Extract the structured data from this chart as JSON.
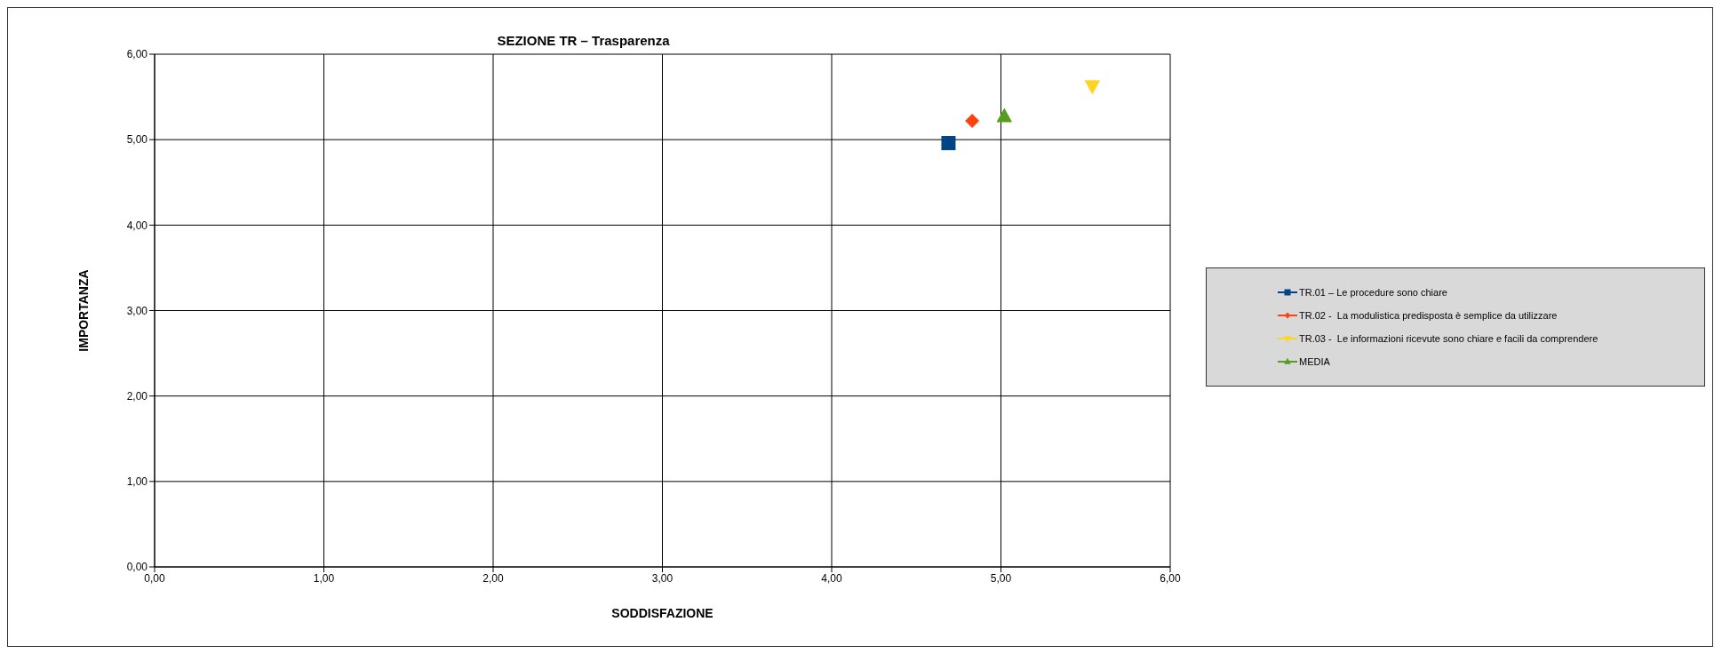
{
  "chart_data": {
    "type": "scatter",
    "title": "SEZIONE TR – Trasparenza",
    "xlabel": "SODDISFAZIONE",
    "ylabel": "IMPORTANZA",
    "xlim": [
      0,
      6
    ],
    "ylim": [
      0,
      6
    ],
    "xticks": [
      {
        "value": 0,
        "label": "0,00"
      },
      {
        "value": 1,
        "label": "1,00"
      },
      {
        "value": 2,
        "label": "2,00"
      },
      {
        "value": 3,
        "label": "3,00"
      },
      {
        "value": 4,
        "label": "4,00"
      },
      {
        "value": 5,
        "label": "5,00"
      },
      {
        "value": 6,
        "label": "6,00"
      }
    ],
    "yticks": [
      {
        "value": 0,
        "label": "0,00"
      },
      {
        "value": 1,
        "label": "1,00"
      },
      {
        "value": 2,
        "label": "2,00"
      },
      {
        "value": 3,
        "label": "3,00"
      },
      {
        "value": 4,
        "label": "4,00"
      },
      {
        "value": 5,
        "label": "5,00"
      },
      {
        "value": 6,
        "label": "6,00"
      }
    ],
    "grid": true,
    "legend": "right",
    "series": [
      {
        "name": "TR.01 – Le procedure sono chiare",
        "color": "#004586",
        "marker": "square",
        "x": [
          4.69
        ],
        "values": [
          4.96
        ]
      },
      {
        "name": "TR.02 -  La modulistica predisposta è semplice da utilizzare",
        "color": "#ff420e",
        "marker": "diamond",
        "x": [
          4.83
        ],
        "values": [
          5.22
        ]
      },
      {
        "name": "TR.03 -  Le informazioni ricevute sono chiare e facili da comprendere",
        "color": "#ffd320",
        "marker": "triangle-down",
        "x": [
          5.54
        ],
        "values": [
          5.63
        ]
      },
      {
        "name": "MEDIA",
        "color": "#579d1c",
        "marker": "triangle",
        "x": [
          5.02
        ],
        "values": [
          5.27
        ]
      }
    ]
  }
}
